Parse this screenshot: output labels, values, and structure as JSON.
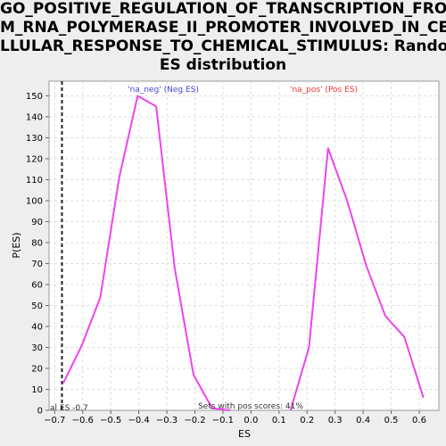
{
  "chart_data": {
    "type": "line",
    "title_lines": [
      "GO_POSITIVE_REGULATION_OF_TRANSCRIPTION_FRO",
      "M_RNA_POLYMERASE_II_PROMOTER_INVOLVED_IN_CE",
      "LLULAR_RESPONSE_TO_CHEMICAL_STIMULUS: Random",
      "ES distribution"
    ],
    "xlabel": "ES",
    "ylabel": "P(ES)",
    "xlim": [
      -0.72,
      0.67
    ],
    "ylim": [
      0,
      157
    ],
    "x_ticks": [
      -0.7,
      -0.6,
      -0.5,
      -0.4,
      -0.3,
      -0.2,
      -0.1,
      0.0,
      0.1,
      0.2,
      0.3,
      0.4,
      0.5,
      0.6
    ],
    "x_tick_labels": [
      "−0.7",
      "−0.6",
      "−0.5",
      "−0.4",
      "−0.3",
      "−0.2",
      "−0.1",
      "0.0",
      "0.1",
      "0.2",
      "0.3",
      "0.4",
      "0.5",
      "0.6"
    ],
    "y_ticks": [
      0,
      10,
      20,
      30,
      40,
      50,
      60,
      70,
      80,
      90,
      100,
      110,
      120,
      130,
      140,
      150
    ],
    "grid": true,
    "series": [
      {
        "name": "'na_neg' (Neg ES)",
        "color": "#ee44ee",
        "x": [
          -0.669,
          -0.603,
          -0.537,
          -0.47,
          -0.404,
          -0.338,
          -0.272,
          -0.205,
          -0.139,
          -0.073
        ],
        "y": [
          13,
          31,
          54,
          111,
          150,
          145,
          68,
          17,
          1,
          0
        ]
      },
      {
        "name": "'na_pos' (Pos ES)",
        "color": "#ee44ee",
        "x": [
          0.141,
          0.207,
          0.275,
          0.343,
          0.411,
          0.479,
          0.547,
          0.615
        ],
        "y": [
          0,
          30,
          125,
          100,
          69,
          45,
          35,
          6
        ]
      }
    ],
    "legend": [
      {
        "label": "'na_neg' (Neg ES)",
        "color": "#4444dd"
      },
      {
        "label": "'na_pos' (Pos ES)",
        "color": "#ee3333"
      }
    ],
    "actual_es": {
      "value": -0.674,
      "label": "al ES -0.7"
    },
    "annotation": "Sets with pos scores: 41%"
  }
}
